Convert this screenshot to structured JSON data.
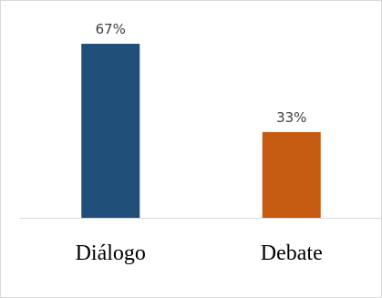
{
  "chart_data": {
    "type": "bar",
    "categories": [
      "Diálogo",
      "Debate"
    ],
    "values": [
      67,
      33
    ],
    "value_labels": [
      "67%",
      "33%"
    ],
    "colors": [
      "#1f4e79",
      "#c55a11"
    ],
    "title": "",
    "xlabel": "",
    "ylabel": "",
    "ylim": [
      0,
      80
    ],
    "grid": false,
    "legend": "none"
  }
}
